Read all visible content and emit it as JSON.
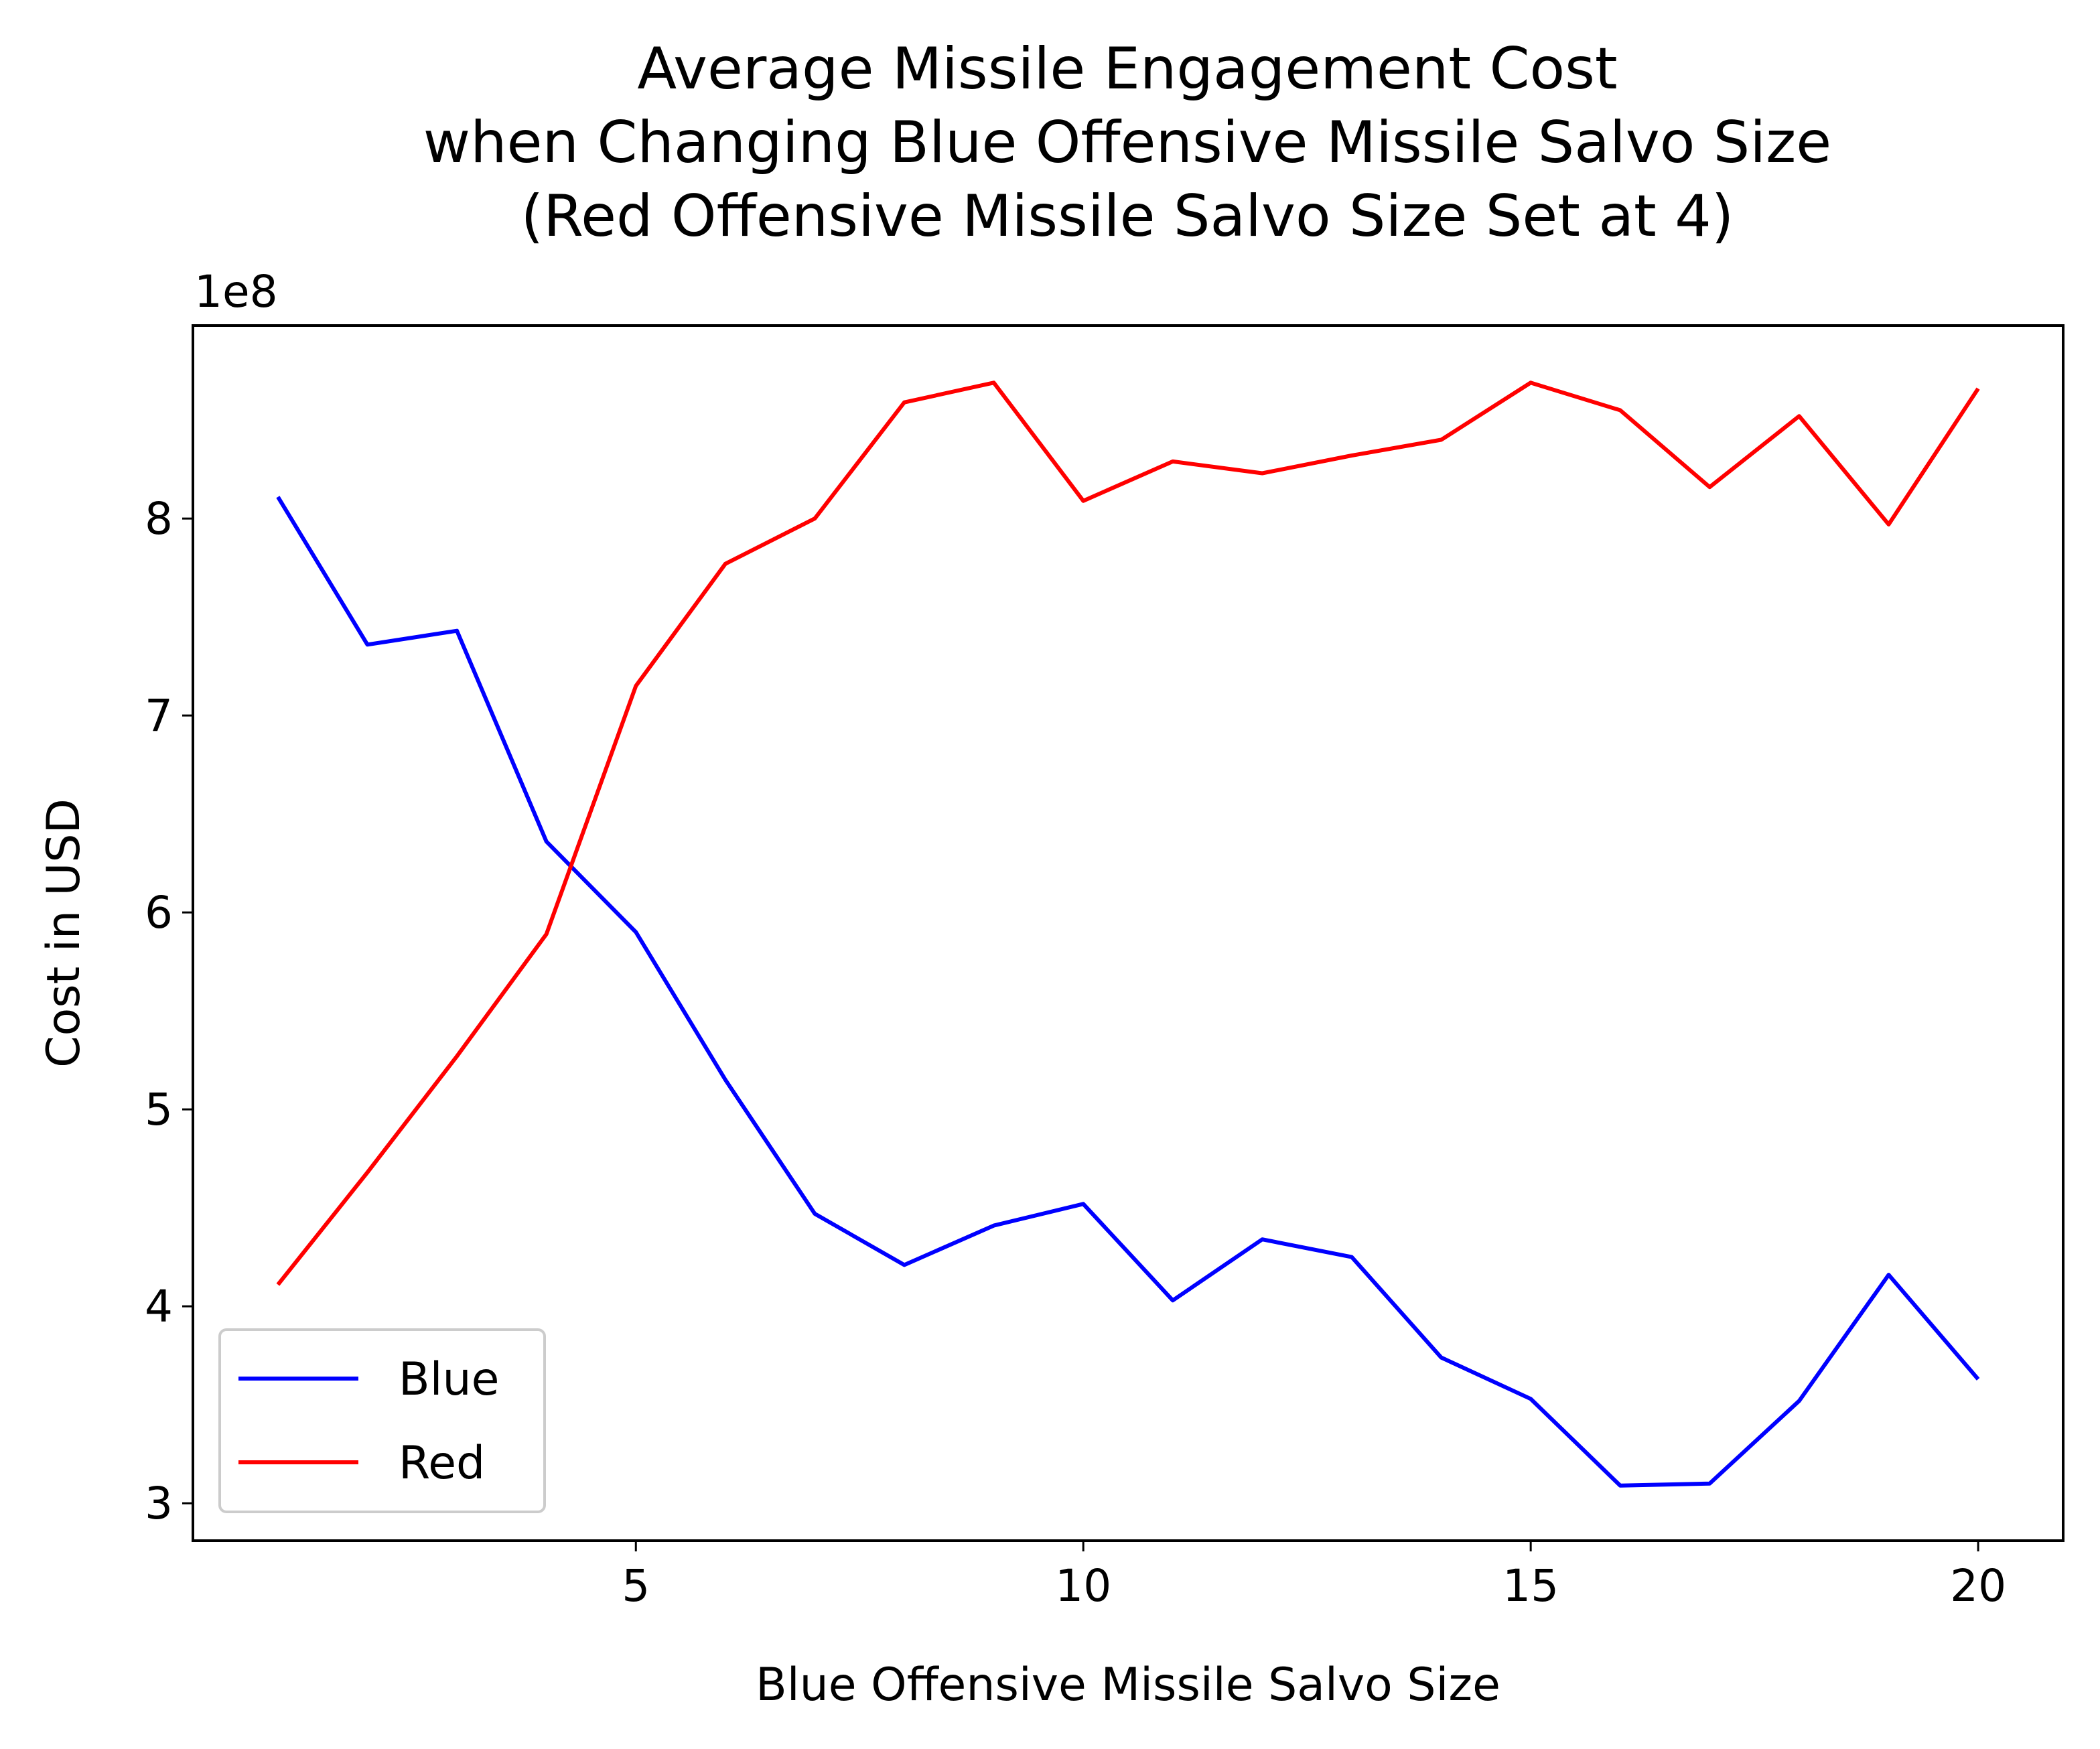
{
  "chart_data": {
    "type": "line",
    "title_lines": [
      "Average Missile Engagement Cost",
      "when Changing Blue Offensive Missile Salvo Size",
      "(Red Offensive Missile Salvo Size Set at 4)"
    ],
    "xlabel": "Blue Offensive Missile Salvo Size",
    "ylabel": "Cost in USD",
    "y_offset_label": "1e8",
    "xlim": [
      0.05,
      20.95
    ],
    "ylim": [
      2.81,
      8.98
    ],
    "x_ticks": [
      5,
      10,
      15,
      20
    ],
    "y_ticks": [
      3,
      4,
      5,
      6,
      7,
      8
    ],
    "grid": false,
    "legend_position": "lower-left",
    "x": [
      1,
      2,
      3,
      4,
      5,
      6,
      7,
      8,
      9,
      10,
      11,
      12,
      13,
      14,
      15,
      16,
      17,
      18,
      19,
      20
    ],
    "series": [
      {
        "name": "Blue",
        "color": "#0000ff",
        "values": [
          8.11,
          7.36,
          7.43,
          6.36,
          5.9,
          5.15,
          4.47,
          4.21,
          4.41,
          4.52,
          4.03,
          4.34,
          4.25,
          3.74,
          3.53,
          3.09,
          3.1,
          3.52,
          4.16,
          3.63
        ]
      },
      {
        "name": "Red",
        "color": "#ff0000",
        "values": [
          4.11,
          4.68,
          5.27,
          5.89,
          7.15,
          7.77,
          8.0,
          8.59,
          8.69,
          8.09,
          8.29,
          8.23,
          8.32,
          8.4,
          8.69,
          8.55,
          8.16,
          8.52,
          7.97,
          8.66
        ]
      }
    ]
  }
}
